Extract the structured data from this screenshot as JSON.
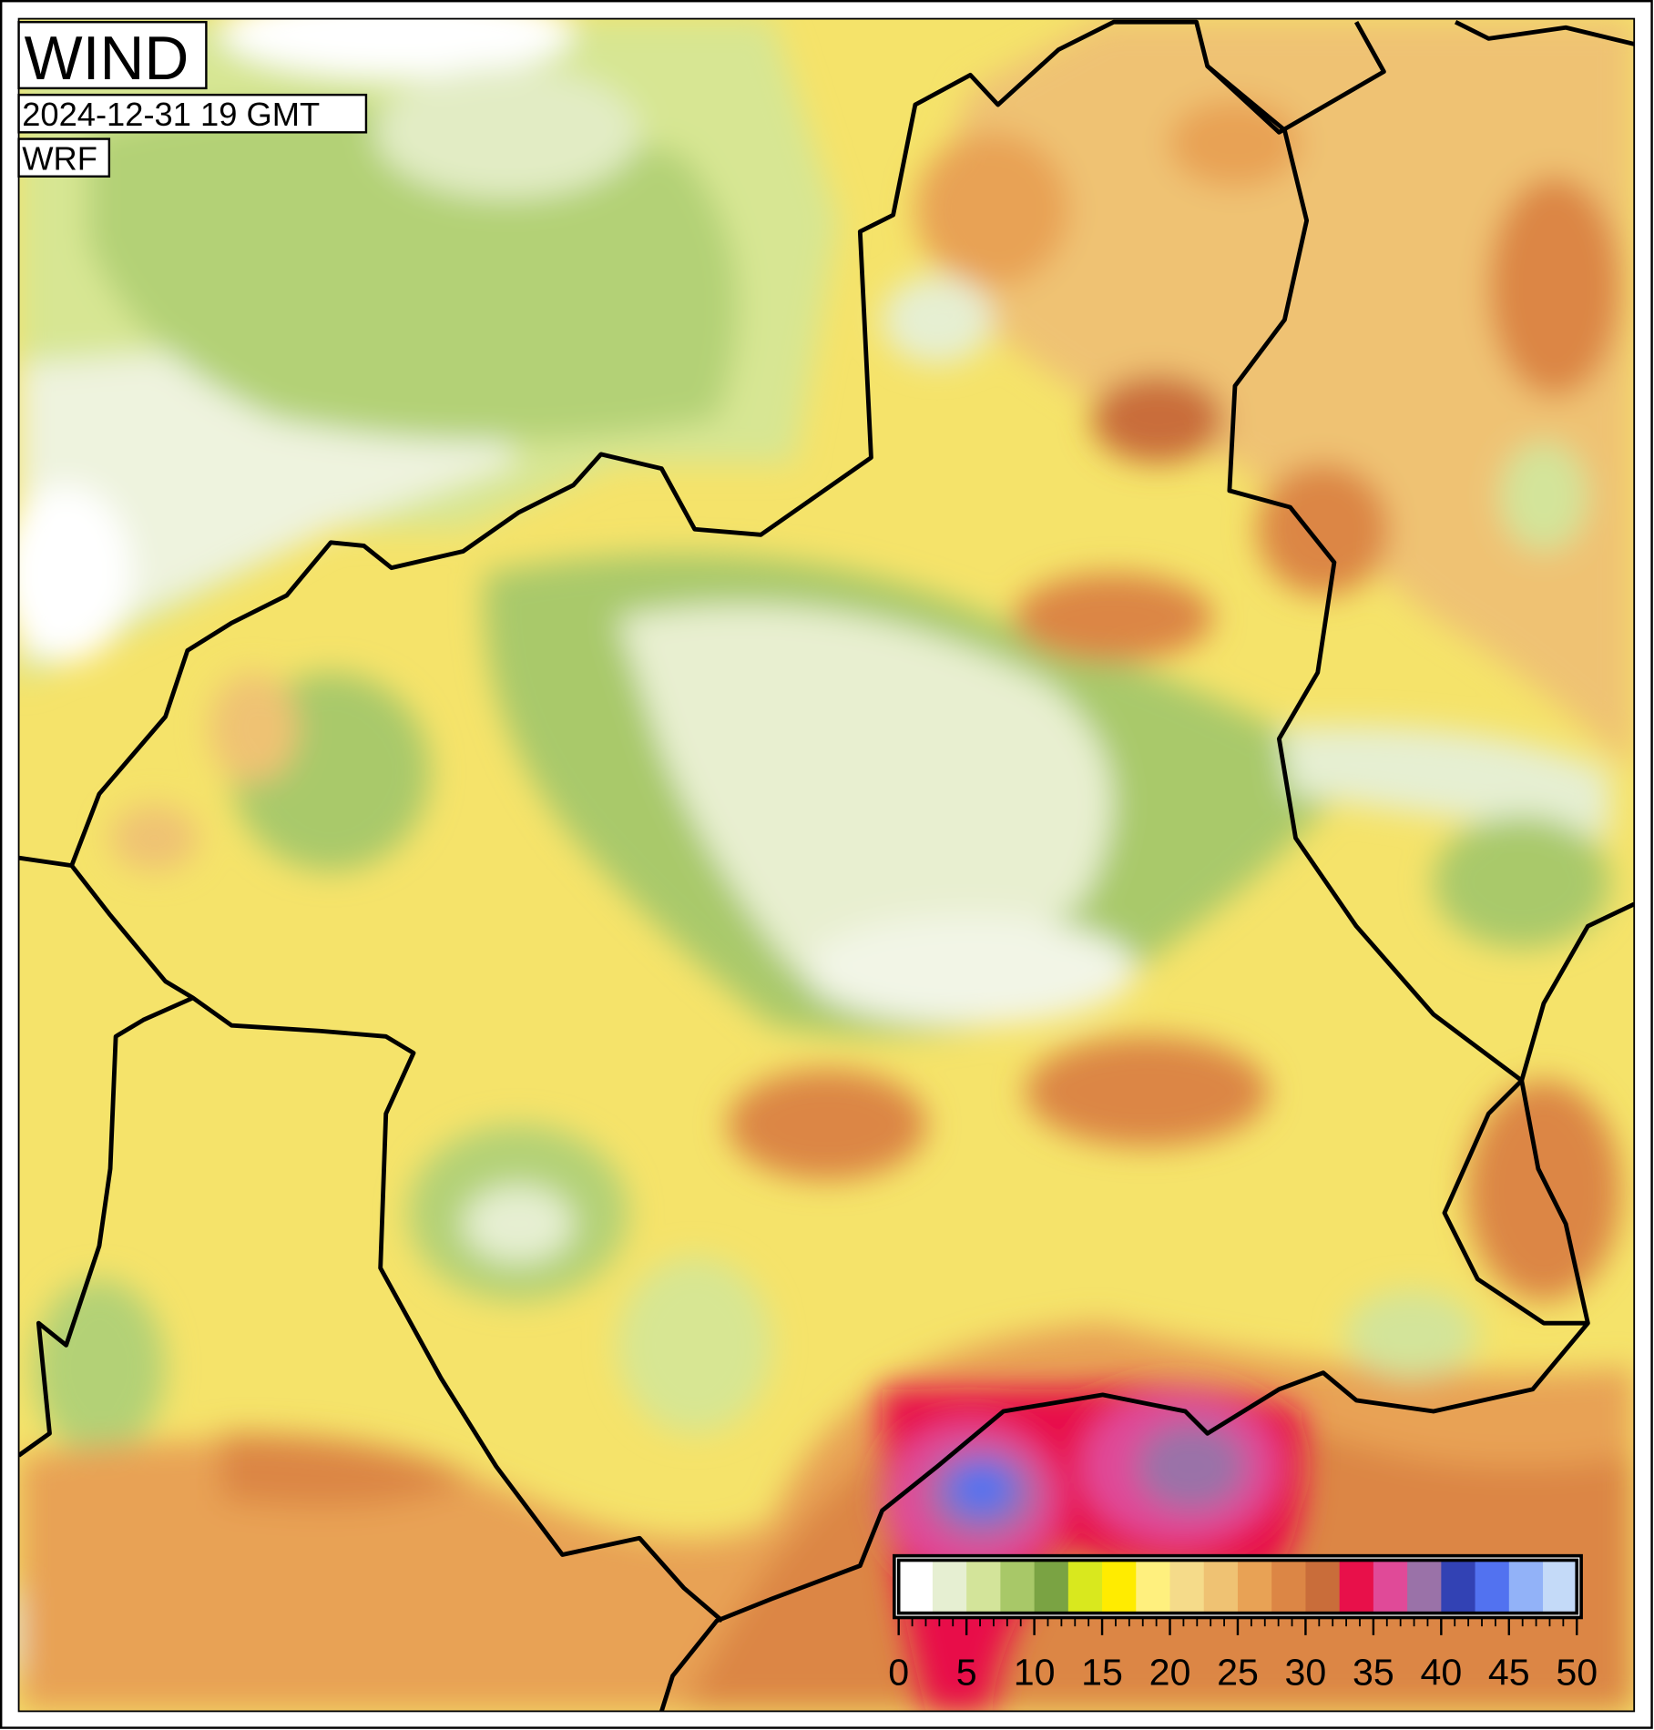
{
  "header": {
    "title": "WIND",
    "time": "2024-12-31 19 GMT",
    "model": "WRF"
  },
  "colorbar": {
    "range": [
      0,
      50
    ],
    "ticks": [
      0,
      5,
      10,
      15,
      20,
      25,
      30,
      35,
      40,
      45,
      50
    ],
    "colors": [
      "#ffffff",
      "#e6efd2",
      "#d3e49a",
      "#a8c868",
      "#7aa343",
      "#d9e81e",
      "#ffec00",
      "#fff07e",
      "#f5db8a",
      "#efc273",
      "#e8a255",
      "#dc8645",
      "#c96d3a",
      "#e8104a",
      "#e04a98",
      "#9a72a8",
      "#3242b4",
      "#5272f0",
      "#92b2f8",
      "#c4daf8"
    ]
  }
}
